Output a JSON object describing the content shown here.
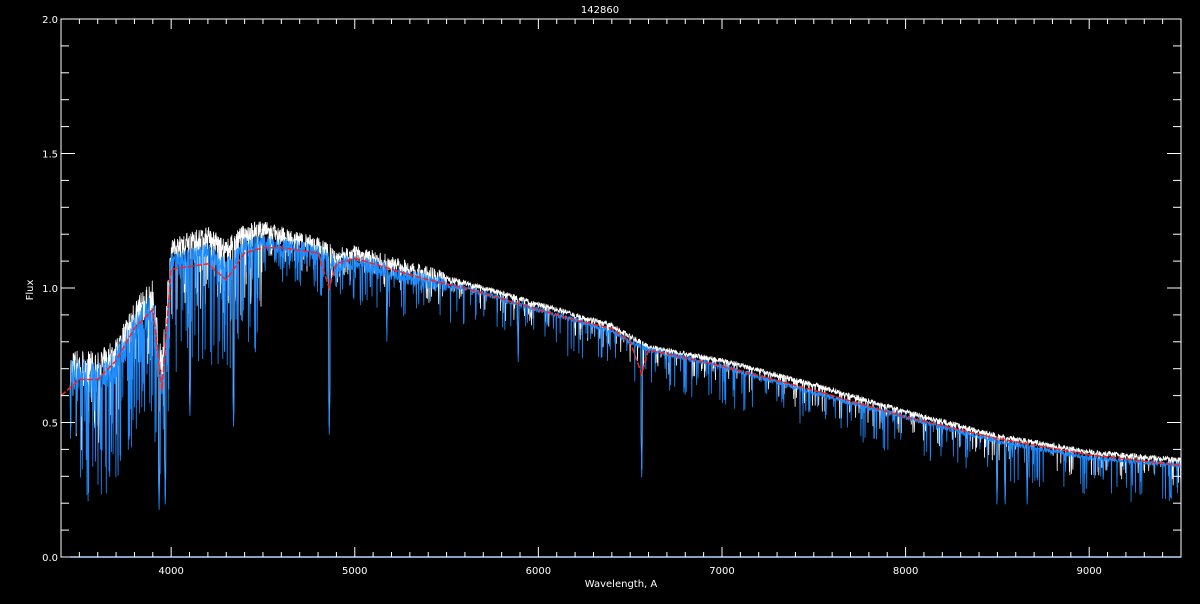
{
  "chart_data": {
    "type": "line",
    "title": "142860",
    "xlabel": "Wavelength, A",
    "ylabel": "Flux",
    "xlim": [
      3400,
      9500
    ],
    "ylim": [
      0.0,
      2.0
    ],
    "xticks": [
      4000,
      5000,
      6000,
      7000,
      8000,
      9000
    ],
    "xtick_labels": [
      "4000",
      "5000",
      "6000",
      "7000",
      "8000",
      "9000"
    ],
    "yticks": [
      0.0,
      0.5,
      1.0,
      1.5,
      2.0
    ],
    "ytick_labels": [
      "0.0",
      "0.5",
      "1.0",
      "1.5",
      "2.0"
    ],
    "x_minor_step": 100,
    "y_minor_step": 0.1,
    "grid": false,
    "colors": {
      "background": "#000000",
      "axes": "#ffffff",
      "observed": "#ffffff",
      "blue_spectrum": "#1e8cff",
      "model": "#ff2020"
    },
    "series": [
      {
        "color": "#ffffff",
        "style": "noisy-line",
        "x": [
          3450,
          3500,
          3600,
          3700,
          3800,
          3900,
          3950,
          4000,
          4100,
          4200,
          4300,
          4400,
          4500,
          4600,
          4700,
          4800,
          4900,
          5000,
          5200,
          5400,
          5600,
          5800,
          6000,
          6200,
          6400,
          6500,
          6600,
          7000,
          7500,
          8000,
          8500,
          9000,
          9500
        ],
        "y": [
          0.7,
          0.72,
          0.7,
          0.76,
          0.9,
          0.97,
          0.7,
          1.15,
          1.18,
          1.2,
          1.15,
          1.21,
          1.22,
          1.2,
          1.18,
          1.16,
          1.12,
          1.13,
          1.09,
          1.05,
          1.02,
          0.98,
          0.94,
          0.9,
          0.86,
          0.82,
          0.78,
          0.73,
          0.64,
          0.54,
          0.45,
          0.39,
          0.36
        ]
      },
      {
        "color": "#1e8cff",
        "style": "noisy-line",
        "x": [
          3450,
          3500,
          3600,
          3700,
          3800,
          3900,
          3950,
          4000,
          4100,
          4200,
          4300,
          4400,
          4500,
          4600,
          4700,
          4800,
          4900,
          5000,
          5200,
          5400,
          5600,
          5800,
          6000,
          6200,
          6400,
          6500,
          6600,
          7000,
          7500,
          8000,
          8500,
          9000,
          9500
        ],
        "y": [
          0.68,
          0.68,
          0.66,
          0.72,
          0.85,
          0.92,
          0.62,
          1.1,
          1.12,
          1.14,
          1.08,
          1.16,
          1.17,
          1.16,
          1.15,
          1.13,
          1.09,
          1.1,
          1.06,
          1.02,
          1.0,
          0.96,
          0.92,
          0.88,
          0.84,
          0.8,
          0.77,
          0.71,
          0.61,
          0.52,
          0.43,
          0.37,
          0.34
        ]
      },
      {
        "color": "#ff2020",
        "style": "line",
        "x": [
          3400,
          3500,
          3600,
          3700,
          3800,
          3900,
          3950,
          4000,
          4100,
          4200,
          4300,
          4400,
          4500,
          4600,
          4700,
          4800,
          4861,
          4900,
          5000,
          5200,
          5400,
          5600,
          5800,
          6000,
          6200,
          6400,
          6500,
          6563,
          6600,
          7000,
          7500,
          8000,
          8500,
          9000,
          9500
        ],
        "y": [
          0.6,
          0.66,
          0.66,
          0.73,
          0.85,
          0.92,
          0.62,
          1.07,
          1.08,
          1.09,
          1.03,
          1.13,
          1.15,
          1.15,
          1.14,
          1.13,
          1.0,
          1.09,
          1.11,
          1.07,
          1.03,
          1.0,
          0.96,
          0.92,
          0.88,
          0.85,
          0.8,
          0.68,
          0.77,
          0.71,
          0.62,
          0.52,
          0.44,
          0.38,
          0.34
        ]
      },
      {
        "color": "#1e8cff",
        "style": "line",
        "x": [
          3450,
          9500
        ],
        "y": [
          0.0,
          0.0
        ]
      }
    ],
    "absorption_lines": [
      {
        "x": 3934,
        "y": 0.15
      },
      {
        "x": 3968,
        "y": 0.17
      },
      {
        "x": 4102,
        "y": 0.5
      },
      {
        "x": 4340,
        "y": 0.46
      },
      {
        "x": 4861,
        "y": 0.43
      },
      {
        "x": 5175,
        "y": 0.8
      },
      {
        "x": 5890,
        "y": 0.7
      },
      {
        "x": 6563,
        "y": 0.27
      },
      {
        "x": 8498,
        "y": 0.17
      },
      {
        "x": 8542,
        "y": 0.17
      },
      {
        "x": 8662,
        "y": 0.17
      }
    ]
  }
}
